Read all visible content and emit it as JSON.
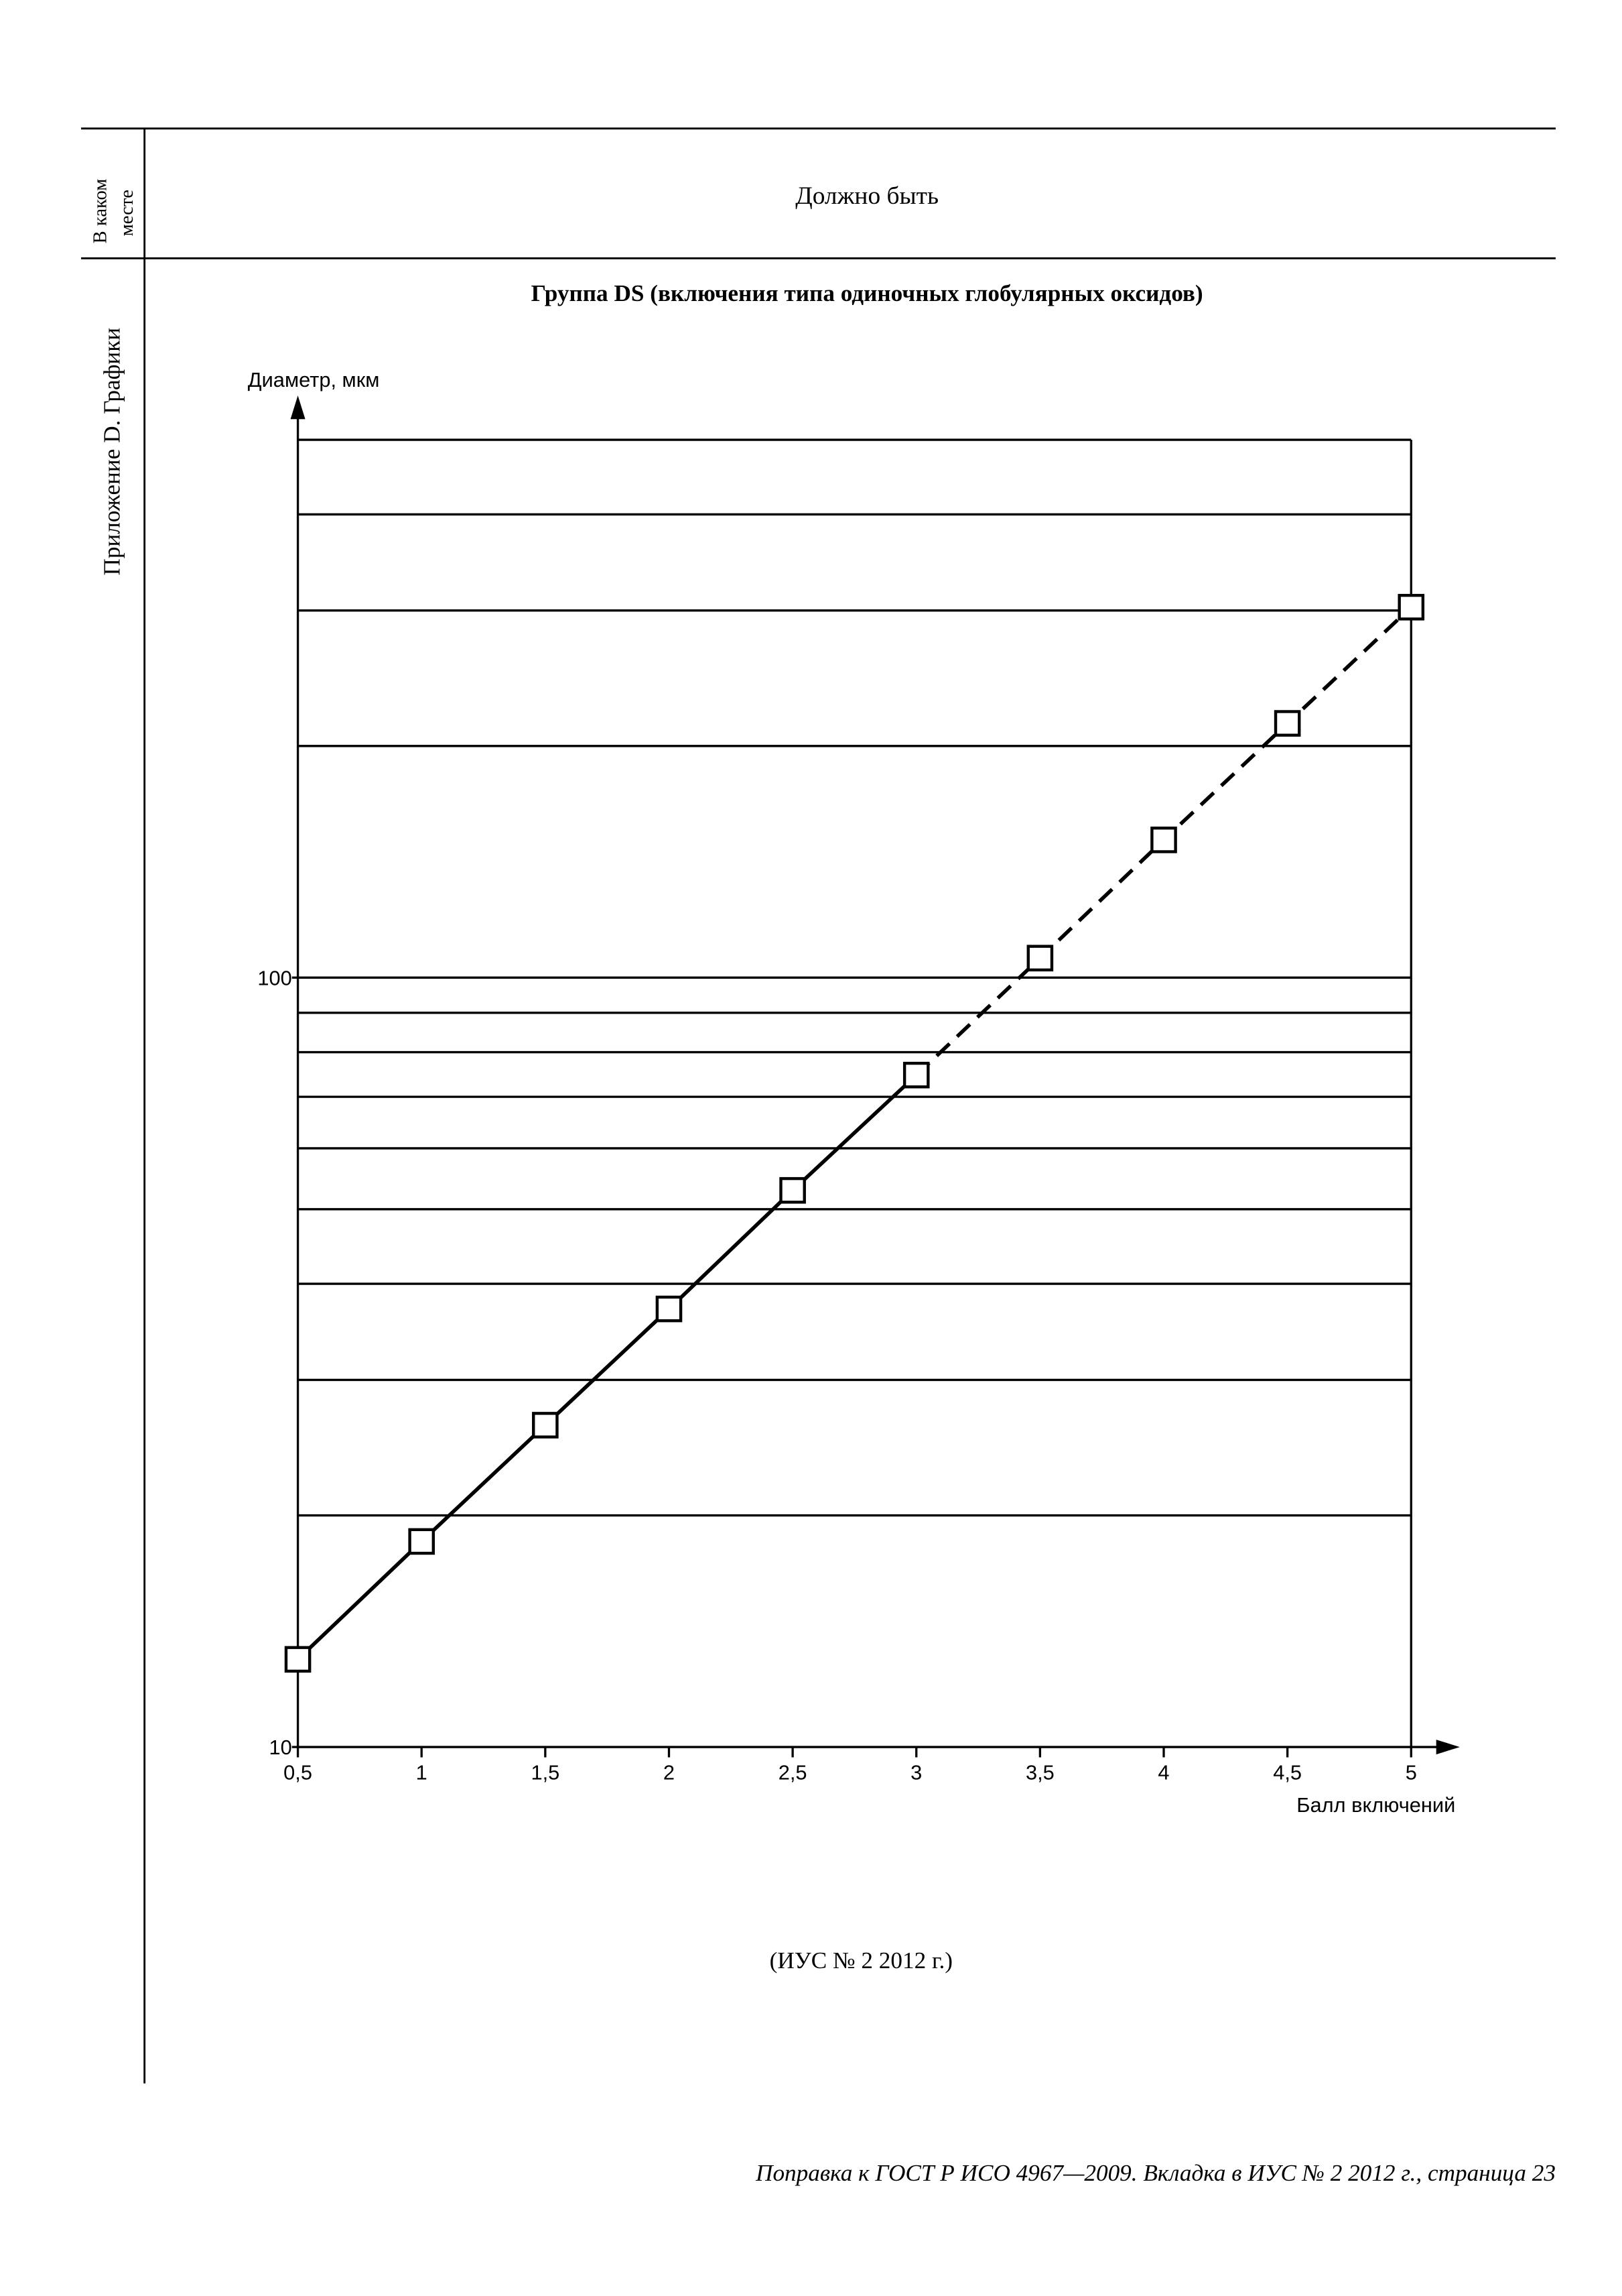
{
  "header": {
    "where": [
      "В каком",
      "месте"
    ],
    "should_be": "Должно быть"
  },
  "section": "Приложение D. Графики",
  "chart_data": {
    "type": "line",
    "title": "Группа DS (включения типа одиночных глобулярных оксидов)",
    "y_label": "Диаметр, мкм",
    "x_label": "Балл включений",
    "x": [
      0.5,
      1,
      1.5,
      2,
      2.5,
      3,
      3.5,
      4,
      4.5,
      5
    ],
    "values": [
      13.0,
      18.5,
      26.2,
      37.1,
      52.9,
      74.7,
      106,
      151,
      214,
      303
    ],
    "dashed_after": 3,
    "color": "#000000",
    "xlim": [
      0.5,
      5
    ],
    "ylim": [
      10,
      500
    ],
    "log_y": true,
    "xticks": [
      {
        "value": 0.5,
        "label": "0,5"
      },
      1,
      {
        "value": 1.5,
        "label": "1,5"
      },
      2,
      {
        "value": 2.5,
        "label": "2,5"
      },
      3,
      {
        "value": 3.5,
        "label": "3,5"
      },
      4,
      {
        "value": 4.5,
        "label": "4,5"
      },
      5
    ],
    "yticks": [
      10,
      100
    ],
    "grid_lines": [
      20,
      30,
      40,
      50,
      60,
      70,
      80,
      90,
      100,
      200,
      300,
      400,
      500
    ]
  },
  "note": "(ИУС № 2 2012 г.)",
  "footer": "Поправка к ГОСТ Р ИСО 4967—2009. Вкладка в ИУС № 2 2012 г., страница 23"
}
